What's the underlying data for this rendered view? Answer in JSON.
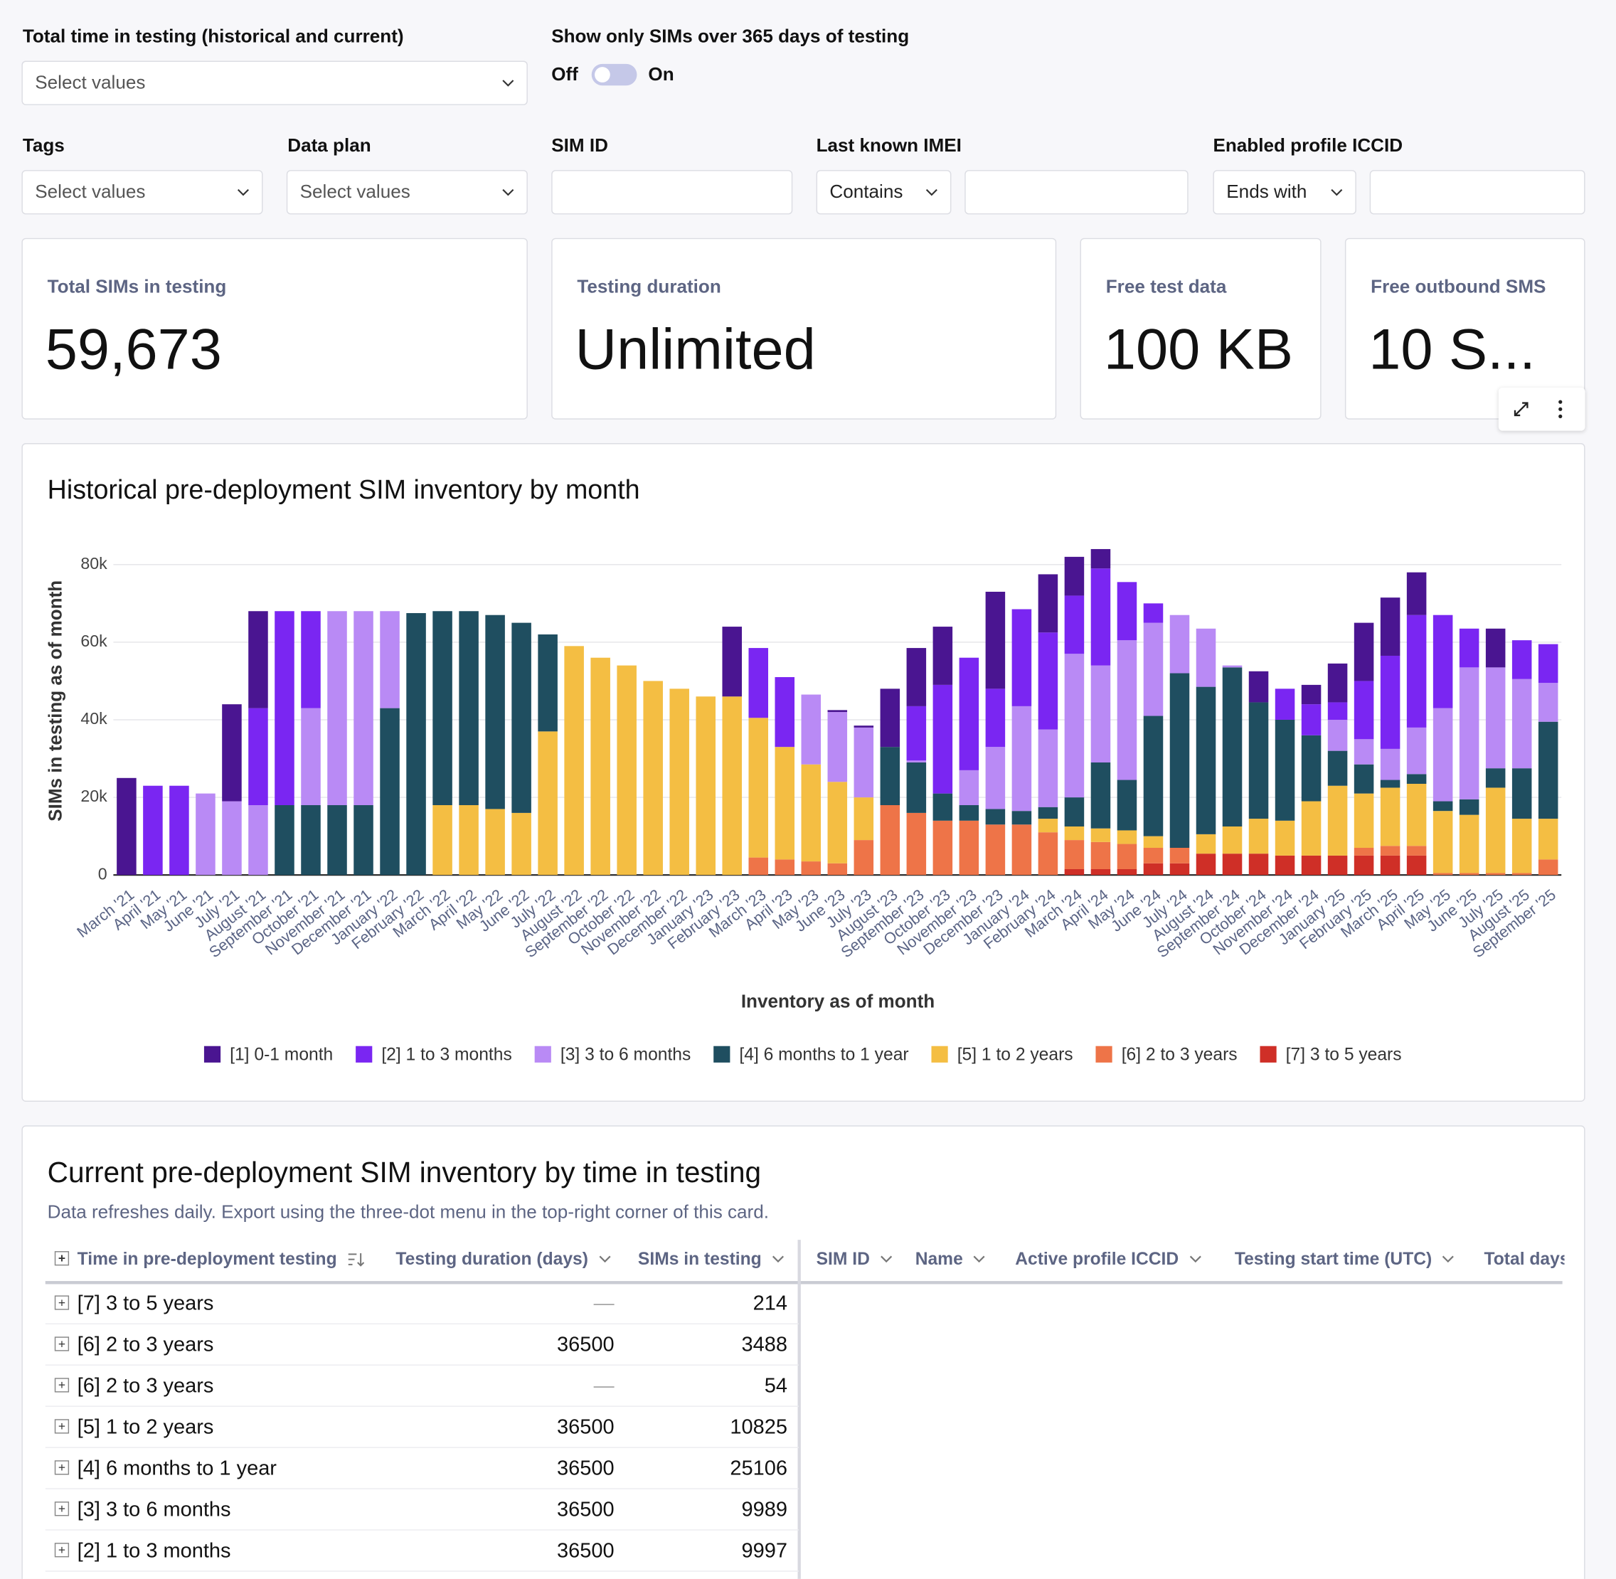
{
  "filters": {
    "total_time": {
      "label": "Total time in testing (historical and current)",
      "placeholder": "Select values"
    },
    "toggle": {
      "label": "Show only SIMs over 365 days of testing",
      "off": "Off",
      "on": "On"
    },
    "tags": {
      "label": "Tags",
      "placeholder": "Select values"
    },
    "data_plan": {
      "label": "Data plan",
      "placeholder": "Select values"
    },
    "sim_id": {
      "label": "SIM ID"
    },
    "imei": {
      "label": "Last known IMEI",
      "operator": "Contains"
    },
    "iccid": {
      "label": "Enabled profile ICCID",
      "operator": "Ends with"
    }
  },
  "kpis": [
    {
      "label": "Total SIMs in testing",
      "value": "59,673"
    },
    {
      "label": "Testing duration",
      "value": "Unlimited"
    },
    {
      "label": "Free test data",
      "value": "100 KB"
    },
    {
      "label": "Free outbound SMS",
      "value": "10 S..."
    }
  ],
  "chart_data": {
    "type": "bar",
    "stacked": true,
    "title": "Historical pre-deployment SIM inventory by month",
    "x_label": "Inventory as of month",
    "y_label": "SIMs in testing as of month",
    "categories": [
      "March '21",
      "April '21",
      "May '21",
      "June '21",
      "July '21",
      "August '21",
      "September '21",
      "October '21",
      "November '21",
      "December '21",
      "January '22",
      "February '22",
      "March '22",
      "April '22",
      "May '22",
      "June '22",
      "July '22",
      "August '22",
      "September '22",
      "October '22",
      "November '22",
      "December '22",
      "January '23",
      "February '23",
      "March '23",
      "April '23",
      "May '23",
      "June '23",
      "July '23",
      "August '23",
      "September '23",
      "October '23",
      "November '23",
      "December '23",
      "January '24",
      "February '24",
      "March '24",
      "April '24",
      "May '24",
      "June '24",
      "July '24",
      "August '24",
      "September '24",
      "October '24",
      "November '24",
      "December '24",
      "January '25",
      "February '25",
      "March '25",
      "April '25",
      "May '25",
      "June '25",
      "July '25",
      "August '25",
      "September '25"
    ],
    "series": [
      {
        "name": "[7] 3 to 5 years",
        "color": "#cf2f27",
        "values": [
          0,
          0,
          0,
          0,
          0,
          0,
          0,
          0,
          0,
          0,
          0,
          0,
          0,
          0,
          0,
          0,
          0,
          0,
          0,
          0,
          0,
          0,
          0,
          0,
          0,
          0,
          0,
          0,
          0,
          0,
          0,
          0,
          0,
          0,
          0,
          0,
          1500,
          1500,
          1500,
          3000,
          3000,
          5500,
          5500,
          5500,
          5000,
          5000,
          5000,
          5000,
          5000,
          5000,
          0,
          0,
          0,
          0,
          0
        ]
      },
      {
        "name": "[6] 2 to 3 years",
        "color": "#ee7448",
        "values": [
          0,
          0,
          0,
          0,
          0,
          0,
          0,
          0,
          0,
          0,
          0,
          0,
          0,
          0,
          0,
          0,
          0,
          0,
          0,
          0,
          0,
          0,
          0,
          0,
          4500,
          4000,
          3500,
          3000,
          9000,
          18000,
          16000,
          14000,
          14000,
          13000,
          13000,
          11000,
          7500,
          7000,
          6500,
          4000,
          4000,
          0,
          0,
          0,
          0,
          0,
          0,
          2000,
          2500,
          2500,
          500,
          500,
          500,
          500,
          4000
        ]
      },
      {
        "name": "[5] 1 to 2 years",
        "color": "#f4be43",
        "values": [
          0,
          0,
          0,
          0,
          0,
          0,
          0,
          0,
          0,
          0,
          0,
          0,
          18000,
          18000,
          17000,
          16000,
          37000,
          59000,
          56000,
          54000,
          50000,
          48000,
          46000,
          46000,
          36000,
          29000,
          25000,
          21000,
          11000,
          0,
          0,
          0,
          0,
          0,
          0,
          3500,
          3500,
          3500,
          3500,
          3000,
          0,
          5000,
          7000,
          9000,
          9000,
          14000,
          18000,
          14000,
          15000,
          16000,
          16000,
          15000,
          22000,
          14000,
          10500
        ]
      },
      {
        "name": "[4] 6 months to 1 year",
        "color": "#1f4e60",
        "values": [
          0,
          0,
          0,
          0,
          0,
          0,
          18000,
          18000,
          18000,
          18000,
          43000,
          67500,
          50000,
          50000,
          50000,
          49000,
          25000,
          0,
          0,
          0,
          0,
          0,
          0,
          0,
          0,
          0,
          0,
          0,
          0,
          15000,
          13000,
          7000,
          4000,
          4000,
          3500,
          3000,
          7500,
          17000,
          13000,
          31000,
          45000,
          38000,
          41000,
          30000,
          26000,
          17000,
          9000,
          7500,
          2000,
          2500,
          2500,
          4000,
          5000,
          13000,
          25000
        ]
      },
      {
        "name": "[3] 3 to 6 months",
        "color": "#b98af5",
        "values": [
          0,
          0,
          0,
          21000,
          19000,
          18000,
          0,
          25000,
          50000,
          50000,
          25000,
          0,
          0,
          0,
          0,
          0,
          0,
          0,
          0,
          0,
          0,
          0,
          0,
          0,
          0,
          0,
          18000,
          18000,
          18000,
          0,
          500,
          0,
          9000,
          16000,
          27000,
          20000,
          37000,
          25000,
          36000,
          24000,
          15000,
          15000,
          500,
          0,
          0,
          0,
          8000,
          6500,
          8000,
          12000,
          24000,
          34000,
          26000,
          23000,
          10000
        ]
      },
      {
        "name": "[2] 1 to 3 months",
        "color": "#7a26f2",
        "values": [
          0,
          23000,
          23000,
          0,
          0,
          25000,
          50000,
          25000,
          0,
          0,
          0,
          0,
          0,
          0,
          0,
          0,
          0,
          0,
          0,
          0,
          0,
          0,
          0,
          0,
          18000,
          18000,
          0,
          0,
          0,
          0,
          14000,
          28000,
          29000,
          15000,
          25000,
          25000,
          15000,
          25000,
          15000,
          5000,
          0,
          0,
          0,
          0,
          8000,
          8000,
          4500,
          15000,
          24000,
          29000,
          24000,
          10000,
          0,
          10000,
          10000
        ]
      },
      {
        "name": "[1] 0-1 month",
        "color": "#4a1591",
        "values": [
          25000,
          0,
          0,
          0,
          25000,
          25000,
          0,
          0,
          0,
          0,
          0,
          0,
          0,
          0,
          0,
          0,
          0,
          0,
          0,
          0,
          0,
          0,
          0,
          18000,
          0,
          0,
          0,
          500,
          500,
          15000,
          15000,
          15000,
          0,
          25000,
          0,
          15000,
          10000,
          5000,
          0,
          0,
          0,
          0,
          0,
          8000,
          0,
          5000,
          10000,
          15000,
          15000,
          11000,
          0,
          0,
          10000,
          0,
          0
        ]
      }
    ],
    "ylim": [
      0,
      85000
    ],
    "yticks": [
      0,
      {
        "value": 20000,
        "label": "20k"
      },
      {
        "value": 40000,
        "label": "40k"
      },
      {
        "value": 60000,
        "label": "60k"
      },
      {
        "value": 80000,
        "label": "80k"
      }
    ],
    "grid": true,
    "legend": "bottom"
  },
  "table": {
    "title": "Current pre-deployment SIM inventory by time in testing",
    "subtitle": "Data refreshes daily. Export using the three-dot menu in the top-right corner of this card.",
    "columns": [
      "Time in pre-deployment testing",
      "Testing duration (days)",
      "SIMs in testing",
      "SIM ID",
      "Name",
      "Active profile ICCID",
      "Testing start time (UTC)",
      "Total days"
    ],
    "rows": [
      [
        "[7] 3 to 5 years",
        "—",
        214
      ],
      [
        "[6] 2 to 3 years",
        36500,
        3488
      ],
      [
        "[6] 2 to 3 years",
        "—",
        54
      ],
      [
        "[5] 1 to 2 years",
        36500,
        10825
      ],
      [
        "[4] 6 months to 1 year",
        36500,
        25106
      ],
      [
        "[3] 3 to 6 months",
        36500,
        9989
      ],
      [
        "[2] 1 to 3 months",
        36500,
        9997
      ]
    ]
  }
}
